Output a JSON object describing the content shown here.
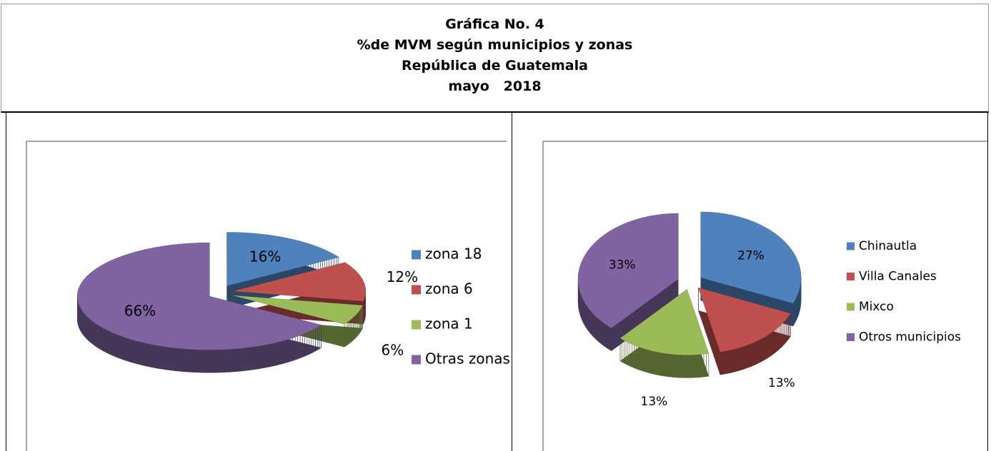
{
  "header": {
    "lines": [
      "Gráfica No. 4",
      "%de MVM según municipios y zonas",
      "República de Guatemala",
      "mayo   2018"
    ]
  },
  "chart_data": [
    {
      "type": "pie",
      "categories": [
        "zona 18",
        "zona 6",
        "zona 1",
        "Otras zonas"
      ],
      "values": [
        16,
        12,
        6,
        66
      ],
      "value_labels": [
        "16%",
        "12%",
        "6%",
        "66%"
      ],
      "colors": [
        "#4f81bd",
        "#c0504d",
        "#9bbb59",
        "#8064a2"
      ],
      "legend": "right"
    },
    {
      "type": "pie",
      "categories": [
        "Chinautla",
        "Villa Canales",
        "Mixco",
        "Otros municipios"
      ],
      "values": [
        27,
        13,
        13,
        33
      ],
      "value_labels": [
        "27%",
        "13%",
        "13%",
        "33%"
      ],
      "colors": [
        "#4f81bd",
        "#c0504d",
        "#9bbb59",
        "#8064a2"
      ],
      "legend": "right"
    }
  ]
}
